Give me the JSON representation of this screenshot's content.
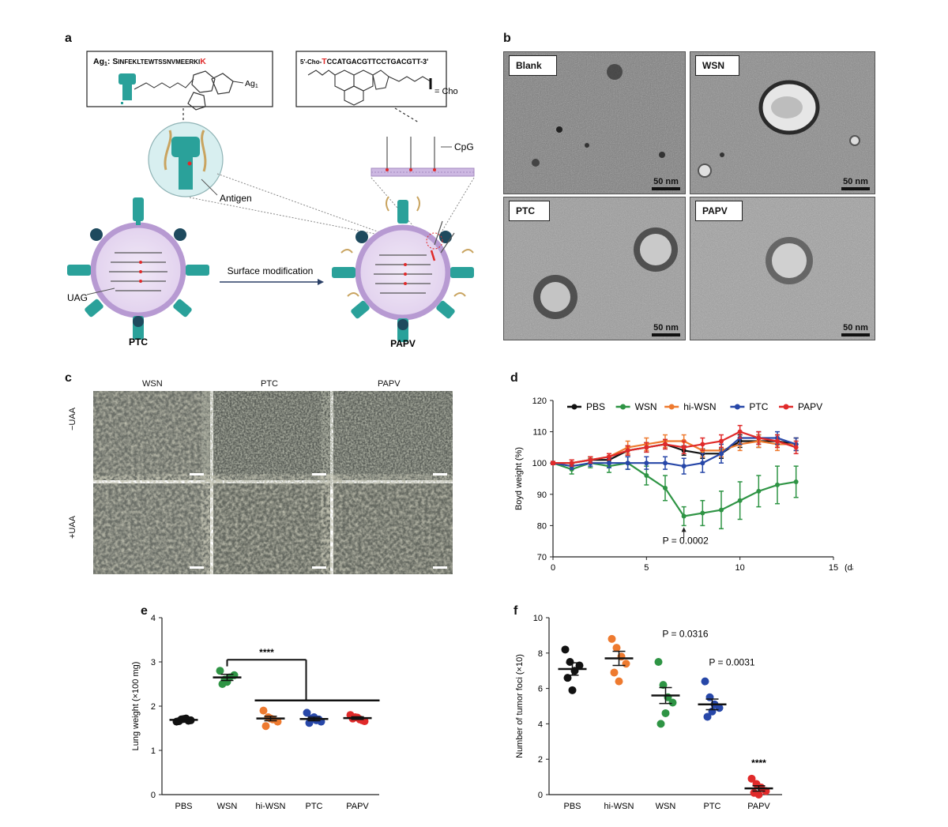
{
  "panels": {
    "a": "a",
    "b": "b",
    "c": "c",
    "d": "d",
    "e": "e",
    "f": "f"
  },
  "panel_a": {
    "antigen_seq_prefix": "Ag",
    "antigen_seq_sub": "1",
    "antigen_seq_body": ": S",
    "antigen_seq_mid": "INFEKLTEWTSSNVMEERKI",
    "antigen_seq_end": "K",
    "ag1_label": "Ag",
    "ag1_sub": "1",
    "dna_seq_pre": "5′-Cho-",
    "dna_seq_t": "T",
    "dna_seq_rest": "CCATGACGTTCCTGACGTT-3′",
    "cho_label": "= Cho",
    "cpg_label": "CpG",
    "antigen_label": "Antigen",
    "uag_label": "UAG",
    "arrow_label": "Surface modification",
    "ptc_label": "PTC",
    "papv_label": "PAPV"
  },
  "panel_b": {
    "images": [
      {
        "label": "Blank",
        "scale": "50 nm"
      },
      {
        "label": "WSN",
        "scale": "50 nm"
      },
      {
        "label": "PTC",
        "scale": "50 nm"
      },
      {
        "label": "PAPV",
        "scale": "50 nm"
      }
    ]
  },
  "panel_c": {
    "columns": [
      "WSN",
      "PTC",
      "PAPV"
    ],
    "rows": [
      "−UAA",
      "+UAA"
    ]
  },
  "colors": {
    "PBS": "#111111",
    "WSN": "#2e9444",
    "hi-WSN": "#ee7a2f",
    "PTC": "#2747a8",
    "PAPV": "#e02a2a",
    "teal": "#2aa19a",
    "membrane": "#cdb8e2"
  },
  "chart_data": [
    {
      "id": "d",
      "type": "line",
      "ylabel": "Boyd weight (%)",
      "xlabel": "(days)",
      "xlim": [
        0,
        15
      ],
      "ylim": [
        70,
        120
      ],
      "xticks": [
        0,
        5,
        10,
        15
      ],
      "xtick_labels": [
        "0",
        "5",
        "10",
        "15"
      ],
      "yticks": [
        70,
        80,
        90,
        100,
        110,
        120
      ],
      "x": [
        0,
        1,
        2,
        3,
        4,
        5,
        6,
        7,
        8,
        9,
        10,
        11,
        12,
        13
      ],
      "series": [
        {
          "name": "PBS",
          "values": [
            100,
            100,
            101,
            101,
            104,
            105,
            106,
            104,
            103,
            103,
            107,
            107,
            107,
            106
          ],
          "err": [
            0.5,
            1,
            1,
            1,
            1.5,
            1.5,
            1.5,
            1.5,
            1.5,
            1.5,
            2,
            2,
            2,
            2
          ]
        },
        {
          "name": "WSN",
          "values": [
            100,
            98,
            100,
            99,
            100,
            96,
            92,
            83,
            84,
            85,
            88,
            91,
            93,
            94
          ],
          "err": [
            0.5,
            1.5,
            1.5,
            2,
            2,
            3,
            4,
            3,
            4,
            6,
            6,
            5,
            6,
            5
          ]
        },
        {
          "name": "hi-WSN",
          "values": [
            100,
            100,
            101,
            102,
            105,
            106,
            107,
            107,
            104,
            104,
            106,
            107,
            106,
            106
          ],
          "err": [
            0.5,
            1,
            1,
            1,
            2,
            2,
            2,
            2,
            2,
            2,
            2,
            2,
            2,
            2
          ]
        },
        {
          "name": "PTC",
          "values": [
            100,
            99,
            100,
            100,
            100,
            100,
            100,
            99,
            100,
            103,
            108,
            108,
            108,
            106
          ],
          "err": [
            0.5,
            1,
            1,
            1.5,
            2,
            2,
            2,
            2.5,
            3,
            3,
            2,
            2,
            2,
            2
          ]
        },
        {
          "name": "PAPV",
          "values": [
            100,
            100,
            101,
            102,
            104,
            105,
            106,
            105,
            106,
            107,
            110,
            108,
            107,
            105
          ],
          "err": [
            0.5,
            1,
            1,
            1,
            1.5,
            1.5,
            1.5,
            2,
            2,
            2,
            2,
            2,
            2,
            2
          ]
        }
      ],
      "annotation": {
        "text": "P = 0.0002",
        "x": 7
      }
    },
    {
      "id": "e",
      "type": "scatter",
      "ylabel": "Lung weight (×100 mg)",
      "categories": [
        "PBS",
        "WSN",
        "hi-WSN",
        "PTC",
        "PAPV"
      ],
      "ylim": [
        0,
        4
      ],
      "yticks": [
        0,
        1,
        2,
        3,
        4
      ],
      "means": [
        1.69,
        2.65,
        1.72,
        1.71,
        1.73
      ],
      "sem": [
        0.03,
        0.07,
        0.05,
        0.04,
        0.03
      ],
      "points": [
        [
          1.65,
          1.7,
          1.72,
          1.68,
          1.66,
          1.71,
          1.67
        ],
        [
          2.8,
          2.6,
          2.65,
          2.7,
          2.5,
          2.55
        ],
        [
          1.9,
          1.75,
          1.7,
          1.65,
          1.55,
          1.72
        ],
        [
          1.85,
          1.72,
          1.68,
          1.65,
          1.62,
          1.75,
          1.7
        ],
        [
          1.8,
          1.75,
          1.7,
          1.66,
          1.72,
          1.74,
          1.68
        ]
      ],
      "annotation": "****"
    },
    {
      "id": "f",
      "type": "scatter",
      "ylabel": "Number of tumor foci (×10)",
      "categories": [
        "PBS",
        "hi-WSN",
        "WSN",
        "PTC",
        "PAPV"
      ],
      "ylim": [
        0,
        10
      ],
      "yticks": [
        0,
        2,
        4,
        6,
        8,
        10
      ],
      "means": [
        7.1,
        7.7,
        5.6,
        5.1,
        0.35
      ],
      "sem": [
        0.35,
        0.4,
        0.45,
        0.3,
        0.15
      ],
      "points": [
        [
          8.2,
          7.5,
          7.0,
          7.3,
          6.6,
          5.9
        ],
        [
          8.8,
          8.3,
          7.8,
          7.4,
          6.9,
          6.4
        ],
        [
          7.5,
          6.2,
          5.5,
          5.2,
          4.0,
          4.6
        ],
        [
          6.4,
          5.5,
          5.1,
          4.9,
          4.4,
          4.7
        ],
        [
          0.9,
          0.6,
          0.4,
          0.2,
          0.1,
          0.0
        ]
      ],
      "annotations": [
        {
          "text": "P = 0.0316",
          "category": "WSN"
        },
        {
          "text": "P = 0.0031",
          "category": "PTC"
        },
        {
          "text": "****",
          "category": "PAPV"
        }
      ]
    }
  ]
}
